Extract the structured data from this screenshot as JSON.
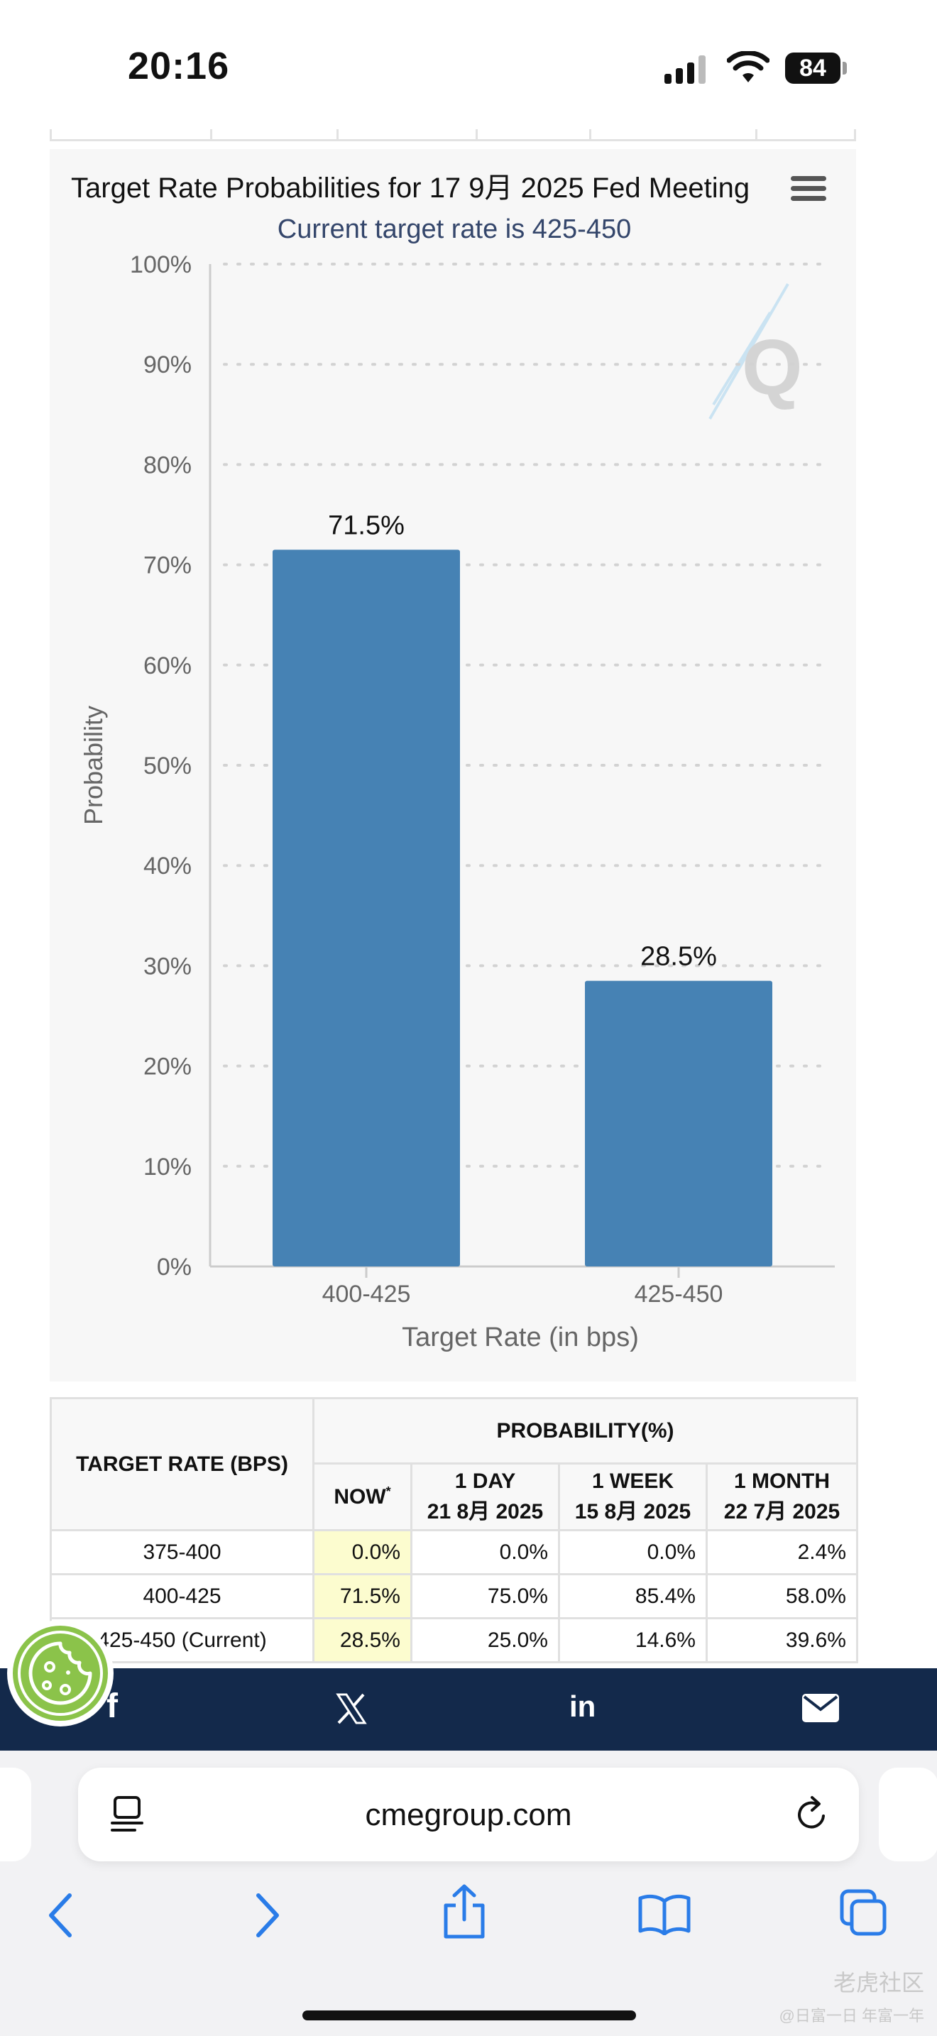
{
  "status_bar": {
    "time": "20:16",
    "battery": "84"
  },
  "chart": {
    "title": "Target Rate Probabilities for 17 9月 2025 Fed Meeting",
    "subtitle": "Current target rate is 425-450"
  },
  "chart_data": {
    "type": "bar",
    "title": "Target Rate Probabilities for 17 9月 2025 Fed Meeting",
    "subtitle": "Current target rate is 425-450",
    "categories": [
      "400-425",
      "425-450"
    ],
    "values": [
      71.5,
      28.5
    ],
    "data_labels": [
      "71.5%",
      "28.5%"
    ],
    "xlabel": "Target Rate (in bps)",
    "ylabel": "Probability",
    "ylim": [
      0,
      100
    ],
    "y_ticks": [
      "0%",
      "10%",
      "20%",
      "30%",
      "40%",
      "50%",
      "60%",
      "70%",
      "80%",
      "90%",
      "100%"
    ],
    "grid": "horizontal dotted",
    "bar_color": "#4682b4"
  },
  "table": {
    "target_rate_header": "TARGET RATE (BPS)",
    "probability_header": "PROBABILITY(%)",
    "columns": [
      {
        "label": "NOW",
        "sup": "*",
        "date": ""
      },
      {
        "label": "1 DAY",
        "date": "21 8月 2025"
      },
      {
        "label": "1 WEEK",
        "date": "15 8月 2025"
      },
      {
        "label": "1 MONTH",
        "date": "22 7月 2025"
      }
    ],
    "rows": [
      {
        "rate": "375-400",
        "values": [
          "0.0%",
          "0.0%",
          "0.0%",
          "2.4%"
        ]
      },
      {
        "rate": "400-425",
        "values": [
          "71.5%",
          "75.0%",
          "85.4%",
          "58.0%"
        ]
      },
      {
        "rate": "425-450 (Current)",
        "values": [
          "28.5%",
          "25.0%",
          "14.6%",
          "39.6%"
        ]
      }
    ]
  },
  "share_bar": {
    "color": "#13294b",
    "icons": [
      "facebook-icon",
      "x-icon",
      "linkedin-icon",
      "mail-icon"
    ],
    "linkedin_label": "in",
    "facebook_label": "f"
  },
  "browser": {
    "url": "cmegroup.com"
  },
  "watermark": {
    "line1": "老虎社区",
    "line2": "@日富一日 年富一年"
  }
}
